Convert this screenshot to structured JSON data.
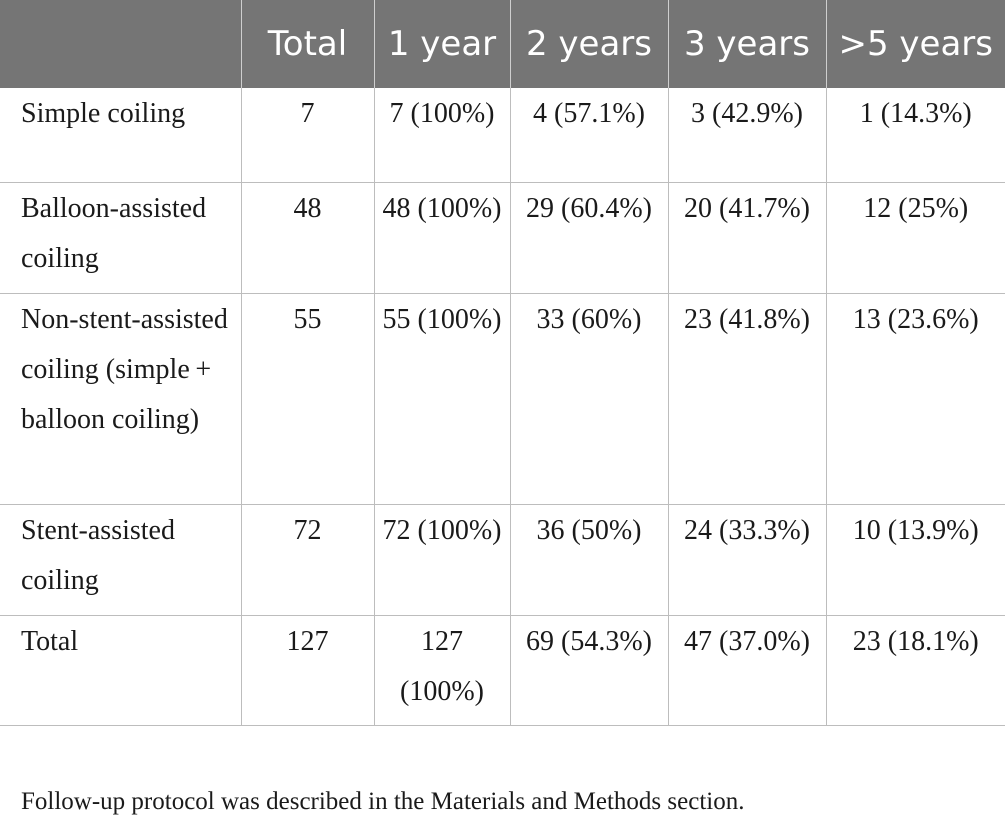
{
  "table": {
    "headers": [
      "",
      "Total",
      "1 year",
      "2 years",
      "3 years",
      ">5 years"
    ],
    "rows": [
      [
        "Simple coiling",
        "7",
        "7 (100%)",
        "4 (57.1%)",
        "3 (42.9%)",
        "1 (14.3%)"
      ],
      [
        "Balloon-assisted coiling",
        "48",
        "48 (100%)",
        "29 (60.4%)",
        "20 (41.7%)",
        "12 (25%)"
      ],
      [
        "Non-stent-assisted coiling (simple + balloon coiling)",
        "55",
        "55 (100%)",
        "33 (60%)",
        "23 (41.8%)",
        "13 (23.6%)"
      ],
      [
        "Stent-assisted coiling",
        "72",
        "72 (100%)",
        "36 (50%)",
        "24 (33.3%)",
        "10 (13.9%)"
      ],
      [
        "Total",
        "127",
        "127 (100%)",
        "69 (54.3%)",
        "47 (37.0%)",
        "23 (18.1%)"
      ]
    ]
  },
  "footnote": "Follow-up protocol was described in the Materials and Methods section."
}
